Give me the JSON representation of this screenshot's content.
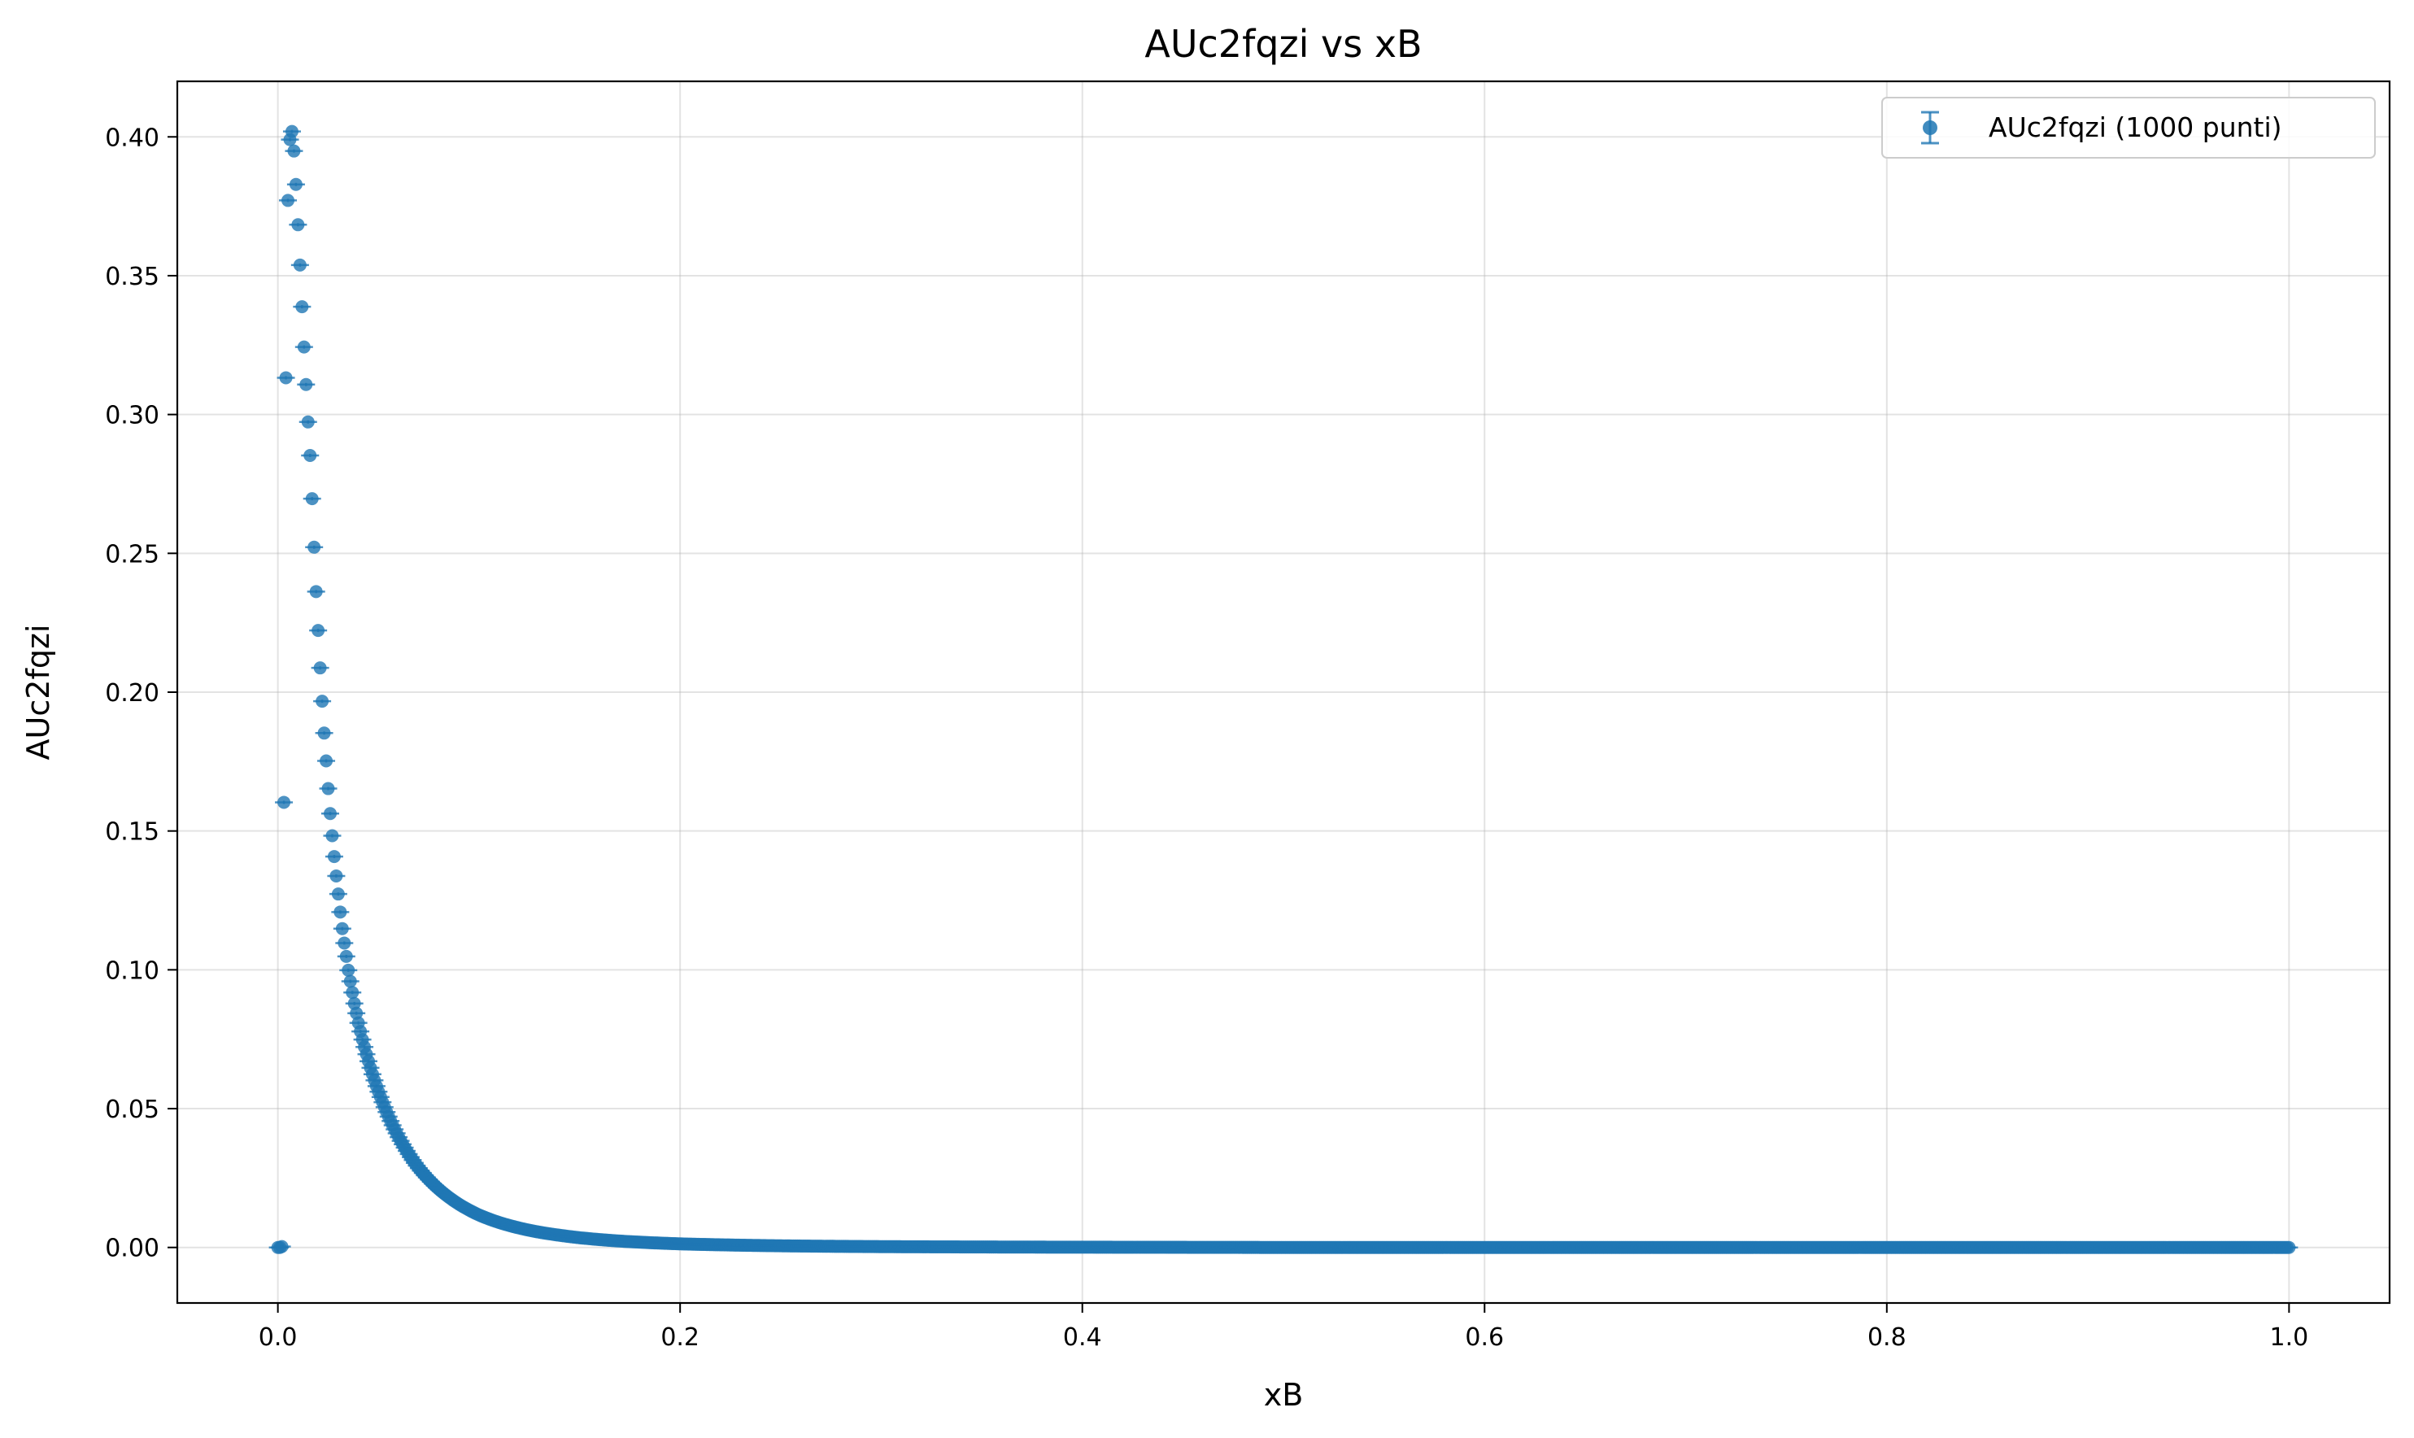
{
  "chart_data": {
    "type": "scatter",
    "title": "AUc2fqzi vs xB",
    "xlabel": "xB",
    "ylabel": "AUc2fqzi",
    "xlim": [
      -0.05,
      1.05
    ],
    "ylim": [
      -0.02,
      0.42
    ],
    "x_ticks": [
      0.0,
      0.2,
      0.4,
      0.6,
      0.8,
      1.0
    ],
    "x_tick_labels": [
      "0.0",
      "0.2",
      "0.4",
      "0.6",
      "0.8",
      "1.0"
    ],
    "y_ticks": [
      0.0,
      0.05,
      0.1,
      0.15,
      0.2,
      0.25,
      0.3,
      0.35,
      0.4
    ],
    "y_tick_labels": [
      "0.00",
      "0.05",
      "0.10",
      "0.15",
      "0.20",
      "0.25",
      "0.30",
      "0.35",
      "0.40"
    ],
    "grid": true,
    "legend_position": "top-right",
    "series": [
      {
        "name": "AUc2fqzi (1000 punti)",
        "color": "#1f77b4",
        "marker": "circle-with-errorbars",
        "point_count": 1000,
        "x_range": [
          0.0,
          1.0
        ],
        "points": [
          [
            0.0,
            0.0
          ],
          [
            0.001,
            0.0
          ],
          [
            0.002,
            0.0
          ],
          [
            0.003,
            0.16
          ],
          [
            0.004,
            0.313
          ],
          [
            0.005,
            0.377
          ],
          [
            0.006,
            0.399
          ],
          [
            0.007,
            0.402
          ],
          [
            0.008,
            0.395
          ],
          [
            0.009,
            0.383
          ],
          [
            0.01,
            0.3685
          ],
          [
            0.011,
            0.354
          ],
          [
            0.012,
            0.339
          ],
          [
            0.013,
            0.3245
          ],
          [
            0.014,
            0.311
          ],
          [
            0.015,
            0.2975
          ],
          [
            0.016,
            0.2855
          ],
          [
            0.017,
            0.27
          ],
          [
            0.018,
            0.2525
          ],
          [
            0.019,
            0.2365
          ],
          [
            0.02,
            0.2225
          ],
          [
            0.021,
            0.209
          ],
          [
            0.022,
            0.197
          ],
          [
            0.023,
            0.1855
          ],
          [
            0.024,
            0.1755
          ],
          [
            0.025,
            0.1655
          ],
          [
            0.026,
            0.1565
          ],
          [
            0.027,
            0.1485
          ],
          [
            0.028,
            0.141
          ],
          [
            0.029,
            0.134
          ],
          [
            0.03,
            0.1275
          ],
          [
            0.031,
            0.121
          ],
          [
            0.032,
            0.115
          ],
          [
            0.033,
            0.1098
          ],
          [
            0.034,
            0.105
          ],
          [
            0.035,
            0.1
          ],
          [
            0.036,
            0.096
          ],
          [
            0.037,
            0.092
          ],
          [
            0.038,
            0.088
          ],
          [
            0.039,
            0.0845
          ],
          [
            0.04,
            0.081
          ],
          [
            0.042,
            0.075
          ],
          [
            0.044,
            0.0697
          ],
          [
            0.046,
            0.0648
          ],
          [
            0.048,
            0.0603
          ],
          [
            0.05,
            0.0562
          ],
          [
            0.055,
            0.0472
          ],
          [
            0.06,
            0.0398
          ],
          [
            0.065,
            0.0337
          ],
          [
            0.07,
            0.0286
          ],
          [
            0.075,
            0.0245
          ],
          [
            0.08,
            0.021
          ],
          [
            0.09,
            0.0156
          ],
          [
            0.1,
            0.0117
          ],
          [
            0.11,
            0.009
          ],
          [
            0.12,
            0.007
          ],
          [
            0.13,
            0.0055
          ],
          [
            0.14,
            0.0044
          ],
          [
            0.15,
            0.0035
          ],
          [
            0.17,
            0.0023
          ],
          [
            0.2,
            0.0013
          ],
          [
            0.25,
            0.0006
          ],
          [
            0.3,
            0.0003
          ],
          [
            0.4,
            0.0001
          ],
          [
            0.5,
            0.0
          ],
          [
            0.6,
            0.0
          ],
          [
            0.7,
            0.0
          ],
          [
            0.8,
            0.0
          ],
          [
            0.9,
            0.0
          ],
          [
            1.0,
            0.0
          ]
        ]
      }
    ]
  }
}
